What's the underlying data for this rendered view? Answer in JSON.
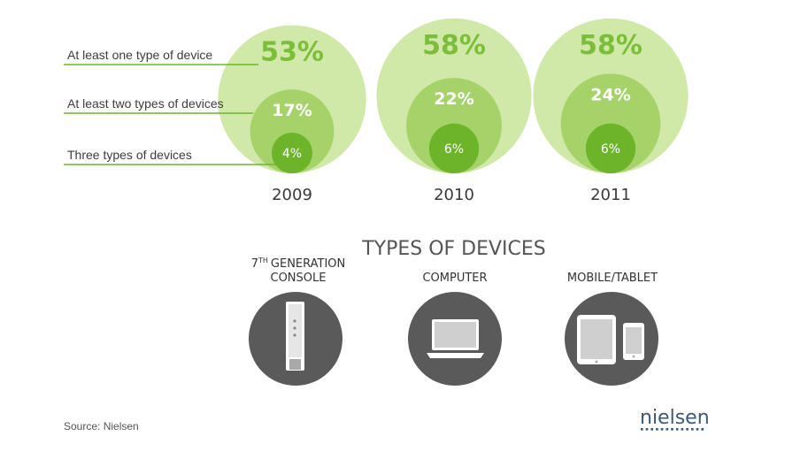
{
  "chart_data": {
    "type": "nested-bubble",
    "years": [
      "2009",
      "2010",
      "2011"
    ],
    "series": [
      {
        "name": "At least one type of device",
        "values": [
          53,
          58,
          58
        ],
        "labels": [
          "53%",
          "58%",
          "58%"
        ]
      },
      {
        "name": "At least two types of devices",
        "values": [
          17,
          22,
          24
        ],
        "labels": [
          "17%",
          "22%",
          "24%"
        ]
      },
      {
        "name": "Three types of devices",
        "values": [
          4,
          6,
          6
        ],
        "labels": [
          "4%",
          "6%",
          "6%"
        ]
      }
    ],
    "colors": {
      "outer": "#d0e8a8",
      "middle": "#a6d26a",
      "inner": "#6db42b",
      "big_text": "#7cbd3a",
      "leader_line": "#6cb52e"
    }
  },
  "devices": {
    "title": "TYPES OF DEVICES",
    "items": [
      {
        "label_lines": [
          "GENERATION",
          "CONSOLE"
        ],
        "prefix": "7",
        "superscript": "TH",
        "icon": "console-icon"
      },
      {
        "label_lines": [
          "COMPUTER"
        ],
        "icon": "laptop-icon"
      },
      {
        "label_lines": [
          "MOBILE/TABLET"
        ],
        "icon": "tablet-phone-icon"
      }
    ],
    "circle_color": "#5a5a5a"
  },
  "footer": {
    "source": "Source: Nielsen",
    "brand": "nielsen"
  }
}
